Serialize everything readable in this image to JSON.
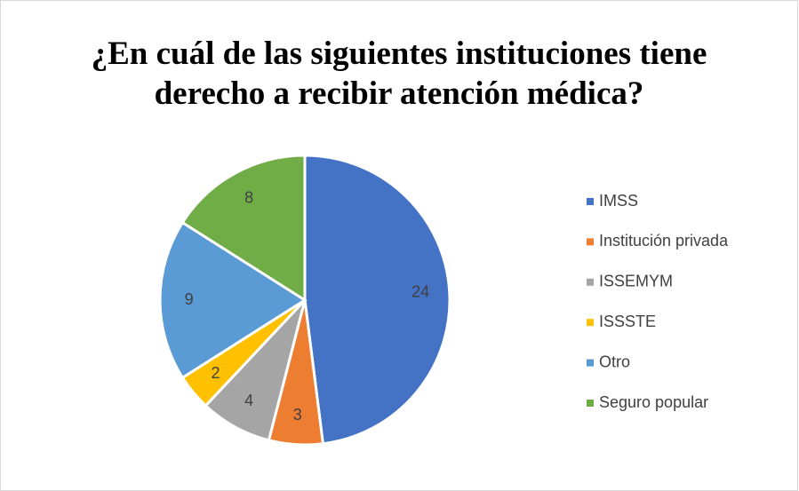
{
  "chart_data": {
    "type": "pie",
    "title": "¿En cuál de las siguientes instituciones tiene derecho a recibir atención médica?",
    "categories": [
      "IMSS",
      "Institución privada",
      "ISSEMYM",
      "ISSSTE",
      "Otro",
      "Seguro popular"
    ],
    "values": [
      24,
      3,
      4,
      2,
      9,
      8
    ],
    "colors": [
      "#4472c4",
      "#ed7d31",
      "#a5a5a5",
      "#ffc000",
      "#5b9bd5",
      "#70ad47"
    ],
    "legend": "right"
  }
}
